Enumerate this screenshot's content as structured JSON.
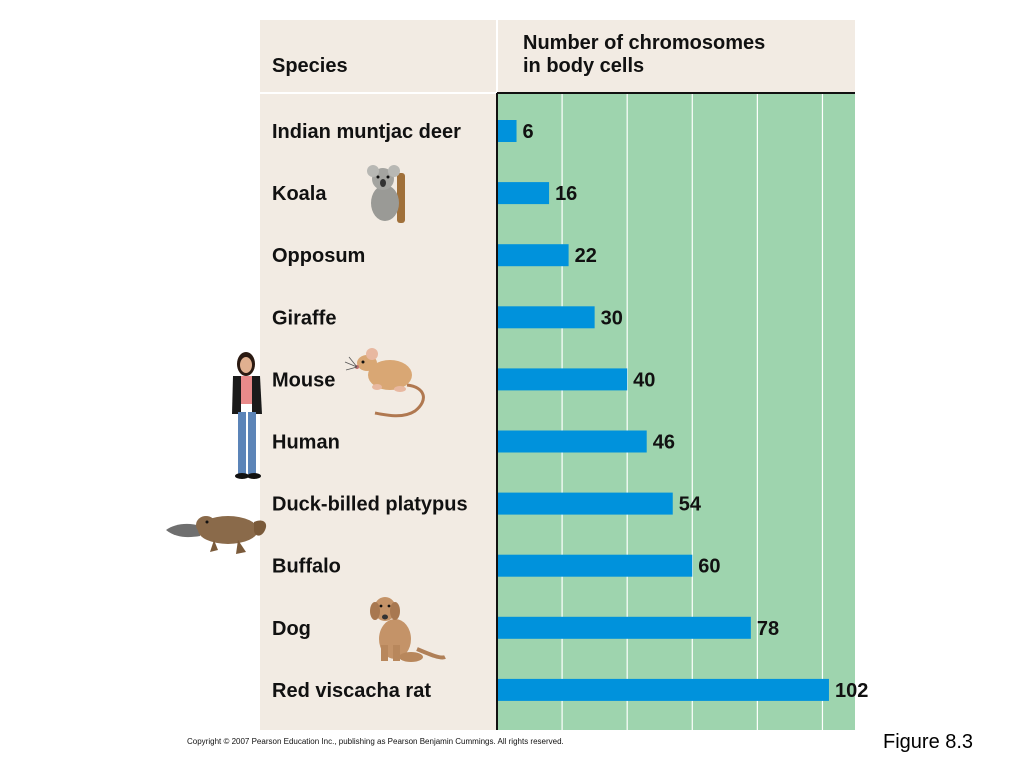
{
  "header": {
    "species_col": "Species",
    "count_col_line1": "Number of chromosomes",
    "count_col_line2": "in body cells"
  },
  "colors": {
    "species_panel": "#f2ebe3",
    "plot_panel": "#9ed4ae",
    "bar": "#0092dc",
    "grid": "#ffffff",
    "axis": "#111111"
  },
  "chart_data": {
    "type": "bar",
    "orientation": "horizontal",
    "categories": [
      "Indian muntjac deer",
      "Koala",
      "Opposum",
      "Giraffe",
      "Mouse",
      "Human",
      "Duck-billed platypus",
      "Buffalo",
      "Dog",
      "Red viscacha rat"
    ],
    "values": [
      6,
      16,
      22,
      30,
      40,
      46,
      54,
      60,
      78,
      102
    ],
    "xlim": [
      0,
      110
    ],
    "grid": true,
    "gridlines_at": [
      20,
      40,
      60,
      80,
      100
    ]
  },
  "illustrations": [
    {
      "icon": "koala-icon",
      "row": 1
    },
    {
      "icon": "mouse-icon",
      "row": 4
    },
    {
      "icon": "woman-icon",
      "row": 5
    },
    {
      "icon": "platypus-icon",
      "row": 6
    },
    {
      "icon": "dog-icon",
      "row": 8
    }
  ],
  "footer": {
    "copyright": "Copyright © 2007 Pearson Education Inc., publishing as Pearson Benjamin Cummings. All rights reserved.",
    "figure_label": "Figure 8.3"
  }
}
